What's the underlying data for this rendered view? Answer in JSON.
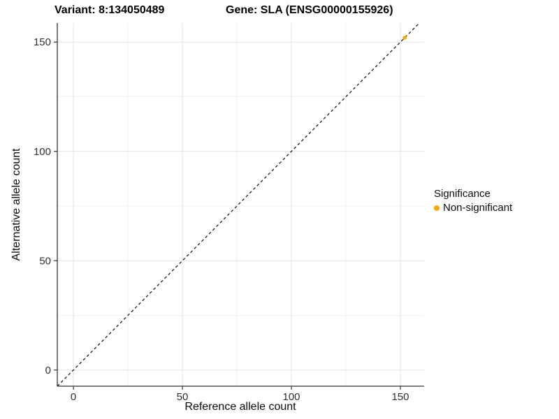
{
  "figure": {
    "title_left": "Variant: 8:134050489",
    "title_right": "Gene: SLA (ENSG00000155926)"
  },
  "legend": {
    "title": "Significance",
    "items": [
      {
        "label": "Non-significant",
        "color": "#FFA500",
        "swatch": "dot"
      }
    ]
  },
  "chart_data": {
    "type": "scatter",
    "title": "Variant: 8:134050489    Gene: SLA (ENSG00000155926)",
    "xlabel": "Reference allele count",
    "ylabel": "Alternative allele count",
    "xlim": [
      -7.4,
      160.9
    ],
    "ylim": [
      -7.4,
      158.7
    ],
    "x_ticks": [
      0,
      50,
      100,
      150
    ],
    "y_ticks": [
      0,
      50,
      100,
      150
    ],
    "x_minor_ticks": [
      25,
      75,
      125
    ],
    "y_minor_ticks": [
      25,
      75,
      125
    ],
    "grid": true,
    "legend_position": "right",
    "series": [
      {
        "name": "Non-significant",
        "color": "#FFA500",
        "points": [
          {
            "x": 152,
            "y": 152
          }
        ]
      }
    ],
    "reference_line": {
      "type": "identity",
      "equation": "y = x",
      "style": "dashed",
      "color": "#1a1a1a"
    }
  },
  "colors": {
    "point": "#FFA500",
    "grid_major": "#e3e3e3",
    "grid_minor": "#f0f0f0",
    "axis": "#333333",
    "background": "#ffffff"
  }
}
